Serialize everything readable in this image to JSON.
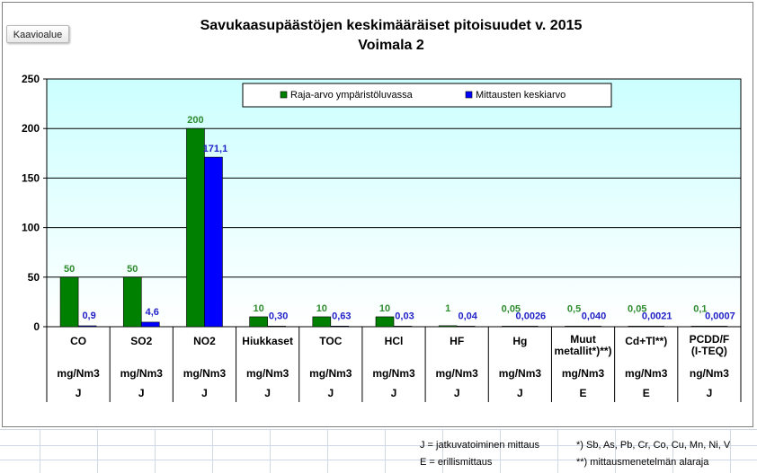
{
  "ui": {
    "chart_area_button": "Kaavioalue"
  },
  "chart_data": {
    "type": "bar",
    "title": "Savukaasupäästöjen keskimääräiset pitoisuudet v. 2015",
    "subtitle": "Voimala 2",
    "ylim": [
      0,
      250
    ],
    "yticks": [
      0,
      50,
      100,
      150,
      200,
      250
    ],
    "grid": true,
    "legend_position": "top-center",
    "categories": [
      "CO",
      "SO2",
      "NO2",
      "Hiukkaset",
      "TOC",
      "HCl",
      "HF",
      "Hg",
      "Muut metallit*)**)",
      "Cd+Tl**)",
      "PCDD/F (I-TEQ)"
    ],
    "category_label_lines": [
      [
        "CO"
      ],
      [
        "SO2"
      ],
      [
        "NO2"
      ],
      [
        "Hiukkaset"
      ],
      [
        "TOC"
      ],
      [
        "HCl"
      ],
      [
        "HF"
      ],
      [
        "Hg"
      ],
      [
        "Muut",
        "metallit*)**)"
      ],
      [
        "Cd+Tl**)"
      ],
      [
        "PCDD/F",
        "(I-TEQ)"
      ]
    ],
    "units": [
      "mg/Nm3",
      "mg/Nm3",
      "mg/Nm3",
      "mg/Nm3",
      "mg/Nm3",
      "mg/Nm3",
      "mg/Nm3",
      "mg/Nm3",
      "mg/Nm3",
      "mg/Nm3",
      "ng/Nm3"
    ],
    "measurement_type": [
      "J",
      "J",
      "J",
      "J",
      "J",
      "J",
      "J",
      "J",
      "E",
      "E",
      "J"
    ],
    "series": [
      {
        "name": "Raja-arvo ympäristöluvassa",
        "color": "#008000",
        "label_color": "#2e8b2e",
        "values": [
          50,
          50,
          200,
          10,
          10,
          10,
          1,
          0.05,
          0.5,
          0.05,
          0.1
        ],
        "labels": [
          "50",
          "50",
          "200",
          "10",
          "10",
          "10",
          "1",
          "0,05",
          "0,5",
          "0,05",
          "0,1"
        ]
      },
      {
        "name": "Mittausten keskiarvo",
        "color": "#0000ff",
        "label_color": "#1f1fc8",
        "values": [
          0.9,
          4.6,
          171.1,
          0.3,
          0.63,
          0.03,
          0.04,
          0.0026,
          0.04,
          0.0021,
          0.0007
        ],
        "labels": [
          "0,9",
          "4,6",
          "171,1",
          "0,30",
          "0,63",
          "0,03",
          "0,04",
          "0,0026",
          "0,040",
          "0,0021",
          "0,0007"
        ]
      }
    ],
    "plot_background_colors": [
      "#ffffff",
      "#ccffff"
    ]
  },
  "footnotes": {
    "j_note": "J = jatkuvatoiminen mittaus",
    "e_note": "E = erillismittaus",
    "metals_note": "*) Sb, As, Pb, Cr, Co, Cu, Mn, Ni, V",
    "limit_note": "**) mittausmenetelmän alaraja"
  }
}
